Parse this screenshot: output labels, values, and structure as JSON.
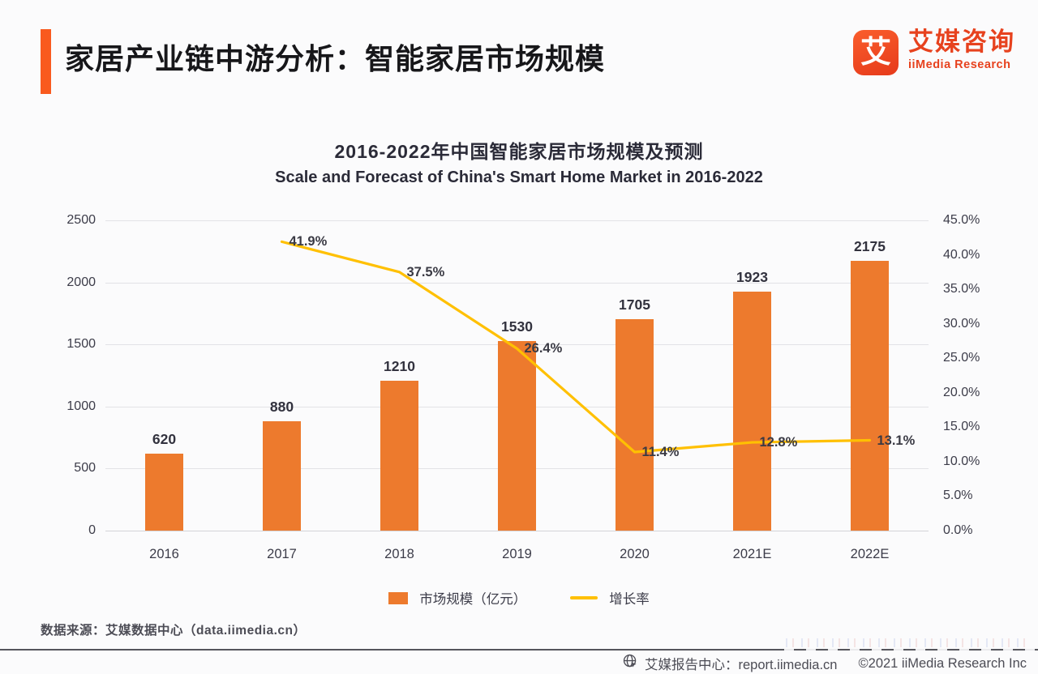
{
  "header": {
    "title": "家居产业链中游分析：智能家居市场规模",
    "logo": {
      "mark": "艾",
      "name_cn": "艾媒咨询",
      "name_en": "iiMedia Research"
    }
  },
  "chart_data": {
    "type": "bar",
    "title_cn": "2016-2022年中国智能家居市场规模及预测",
    "title_en": "Scale and Forecast of China's Smart Home Market in 2016-2022",
    "categories": [
      "2016",
      "2017",
      "2018",
      "2019",
      "2020",
      "2021E",
      "2022E"
    ],
    "series": [
      {
        "name": "市场规模（亿元）",
        "type": "bar",
        "axis": "left",
        "color": "#ED7A2D",
        "values": [
          620,
          880,
          1210,
          1530,
          1705,
          1923,
          2175
        ],
        "value_labels": [
          "620",
          "880",
          "1210",
          "1530",
          "1705",
          "1923",
          "2175"
        ]
      },
      {
        "name": "增长率",
        "type": "line",
        "axis": "right",
        "color": "#FFC002",
        "values": [
          null,
          41.9,
          37.5,
          26.4,
          11.4,
          12.8,
          13.1
        ],
        "value_labels": [
          "",
          "41.9%",
          "37.5%",
          "26.4%",
          "11.4%",
          "12.8%",
          "13.1%"
        ]
      }
    ],
    "left_axis": {
      "min": 0,
      "max": 2500,
      "step": 500,
      "ticks": [
        "0",
        "500",
        "1000",
        "1500",
        "2000",
        "2500"
      ]
    },
    "right_axis": {
      "min": 0,
      "max": 45,
      "step": 5,
      "ticks": [
        "0.0%",
        "5.0%",
        "10.0%",
        "15.0%",
        "20.0%",
        "25.0%",
        "30.0%",
        "35.0%",
        "40.0%",
        "45.0%"
      ]
    },
    "grid": true,
    "legend_position": "bottom"
  },
  "footer": {
    "source": "数据来源：艾媒数据中心（data.iimedia.cn）",
    "report_center": "艾媒报告中心：report.iimedia.cn",
    "copyright": "©2021  iiMedia Research Inc"
  }
}
